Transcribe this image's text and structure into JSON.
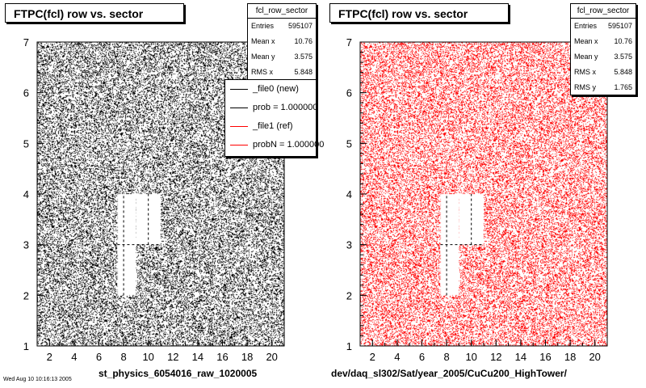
{
  "chart_data": [
    {
      "type": "heatmap",
      "title": "FTPC(fcl) row vs. sector",
      "xlabel": "st_physics_6054016_raw_1020005",
      "ylabel": "",
      "xlim": [
        1,
        21
      ],
      "ylim": [
        1,
        7
      ],
      "x_ticks": [
        "2",
        "4",
        "6",
        "8",
        "10",
        "12",
        "14",
        "16",
        "18",
        "20"
      ],
      "y_ticks": [
        "1",
        "2",
        "3",
        "4",
        "5",
        "6",
        "7"
      ],
      "color": "#000000",
      "empty_regions": [
        {
          "x": [
            7.5,
            9
          ],
          "y": [
            2,
            4
          ]
        },
        {
          "x": [
            9,
            11
          ],
          "y": [
            3,
            4
          ]
        }
      ],
      "stats": {
        "name": "fcl_row_sector",
        "rows": [
          {
            "label": "Entries",
            "value": "595107"
          },
          {
            "label": "Mean x",
            "value": "10.76"
          },
          {
            "label": "Mean y",
            "value": "3.575"
          },
          {
            "label": "RMS x",
            "value": "5.848"
          }
        ]
      },
      "legend": [
        {
          "label": "_file0 (new)",
          "color": "#000000"
        },
        {
          "label": "prob = 1.000000",
          "color": "#000000"
        },
        {
          "label": "_file1 (ref)",
          "color": "#ff0000"
        },
        {
          "label": "probN = 1.000000",
          "color": "#ff0000"
        }
      ]
    },
    {
      "type": "heatmap",
      "title": "FTPC(fcl) row vs. sector",
      "xlabel": "dev/daq_sl302/Sat/year_2005/CuCu200_HighTower/",
      "ylabel": "",
      "xlim": [
        1,
        21
      ],
      "ylim": [
        1,
        7
      ],
      "x_ticks": [
        "2",
        "4",
        "6",
        "8",
        "10",
        "12",
        "14",
        "16",
        "18",
        "20"
      ],
      "y_ticks": [
        "1",
        "2",
        "3",
        "4",
        "5",
        "6",
        "7"
      ],
      "color": "#ff0000",
      "empty_regions": [
        {
          "x": [
            7.5,
            9
          ],
          "y": [
            2,
            4
          ]
        },
        {
          "x": [
            9,
            11
          ],
          "y": [
            3,
            4
          ]
        }
      ],
      "stats": {
        "name": "fcl_row_sector",
        "rows": [
          {
            "label": "Entries",
            "value": "595107"
          },
          {
            "label": "Mean x",
            "value": "10.76"
          },
          {
            "label": "Mean y",
            "value": "3.575"
          },
          {
            "label": "RMS x",
            "value": "5.848"
          },
          {
            "label": "RMS y",
            "value": "1.765"
          }
        ]
      }
    }
  ],
  "footer": {
    "timestamp": "Wed Aug 10 10:16:13 2005"
  }
}
